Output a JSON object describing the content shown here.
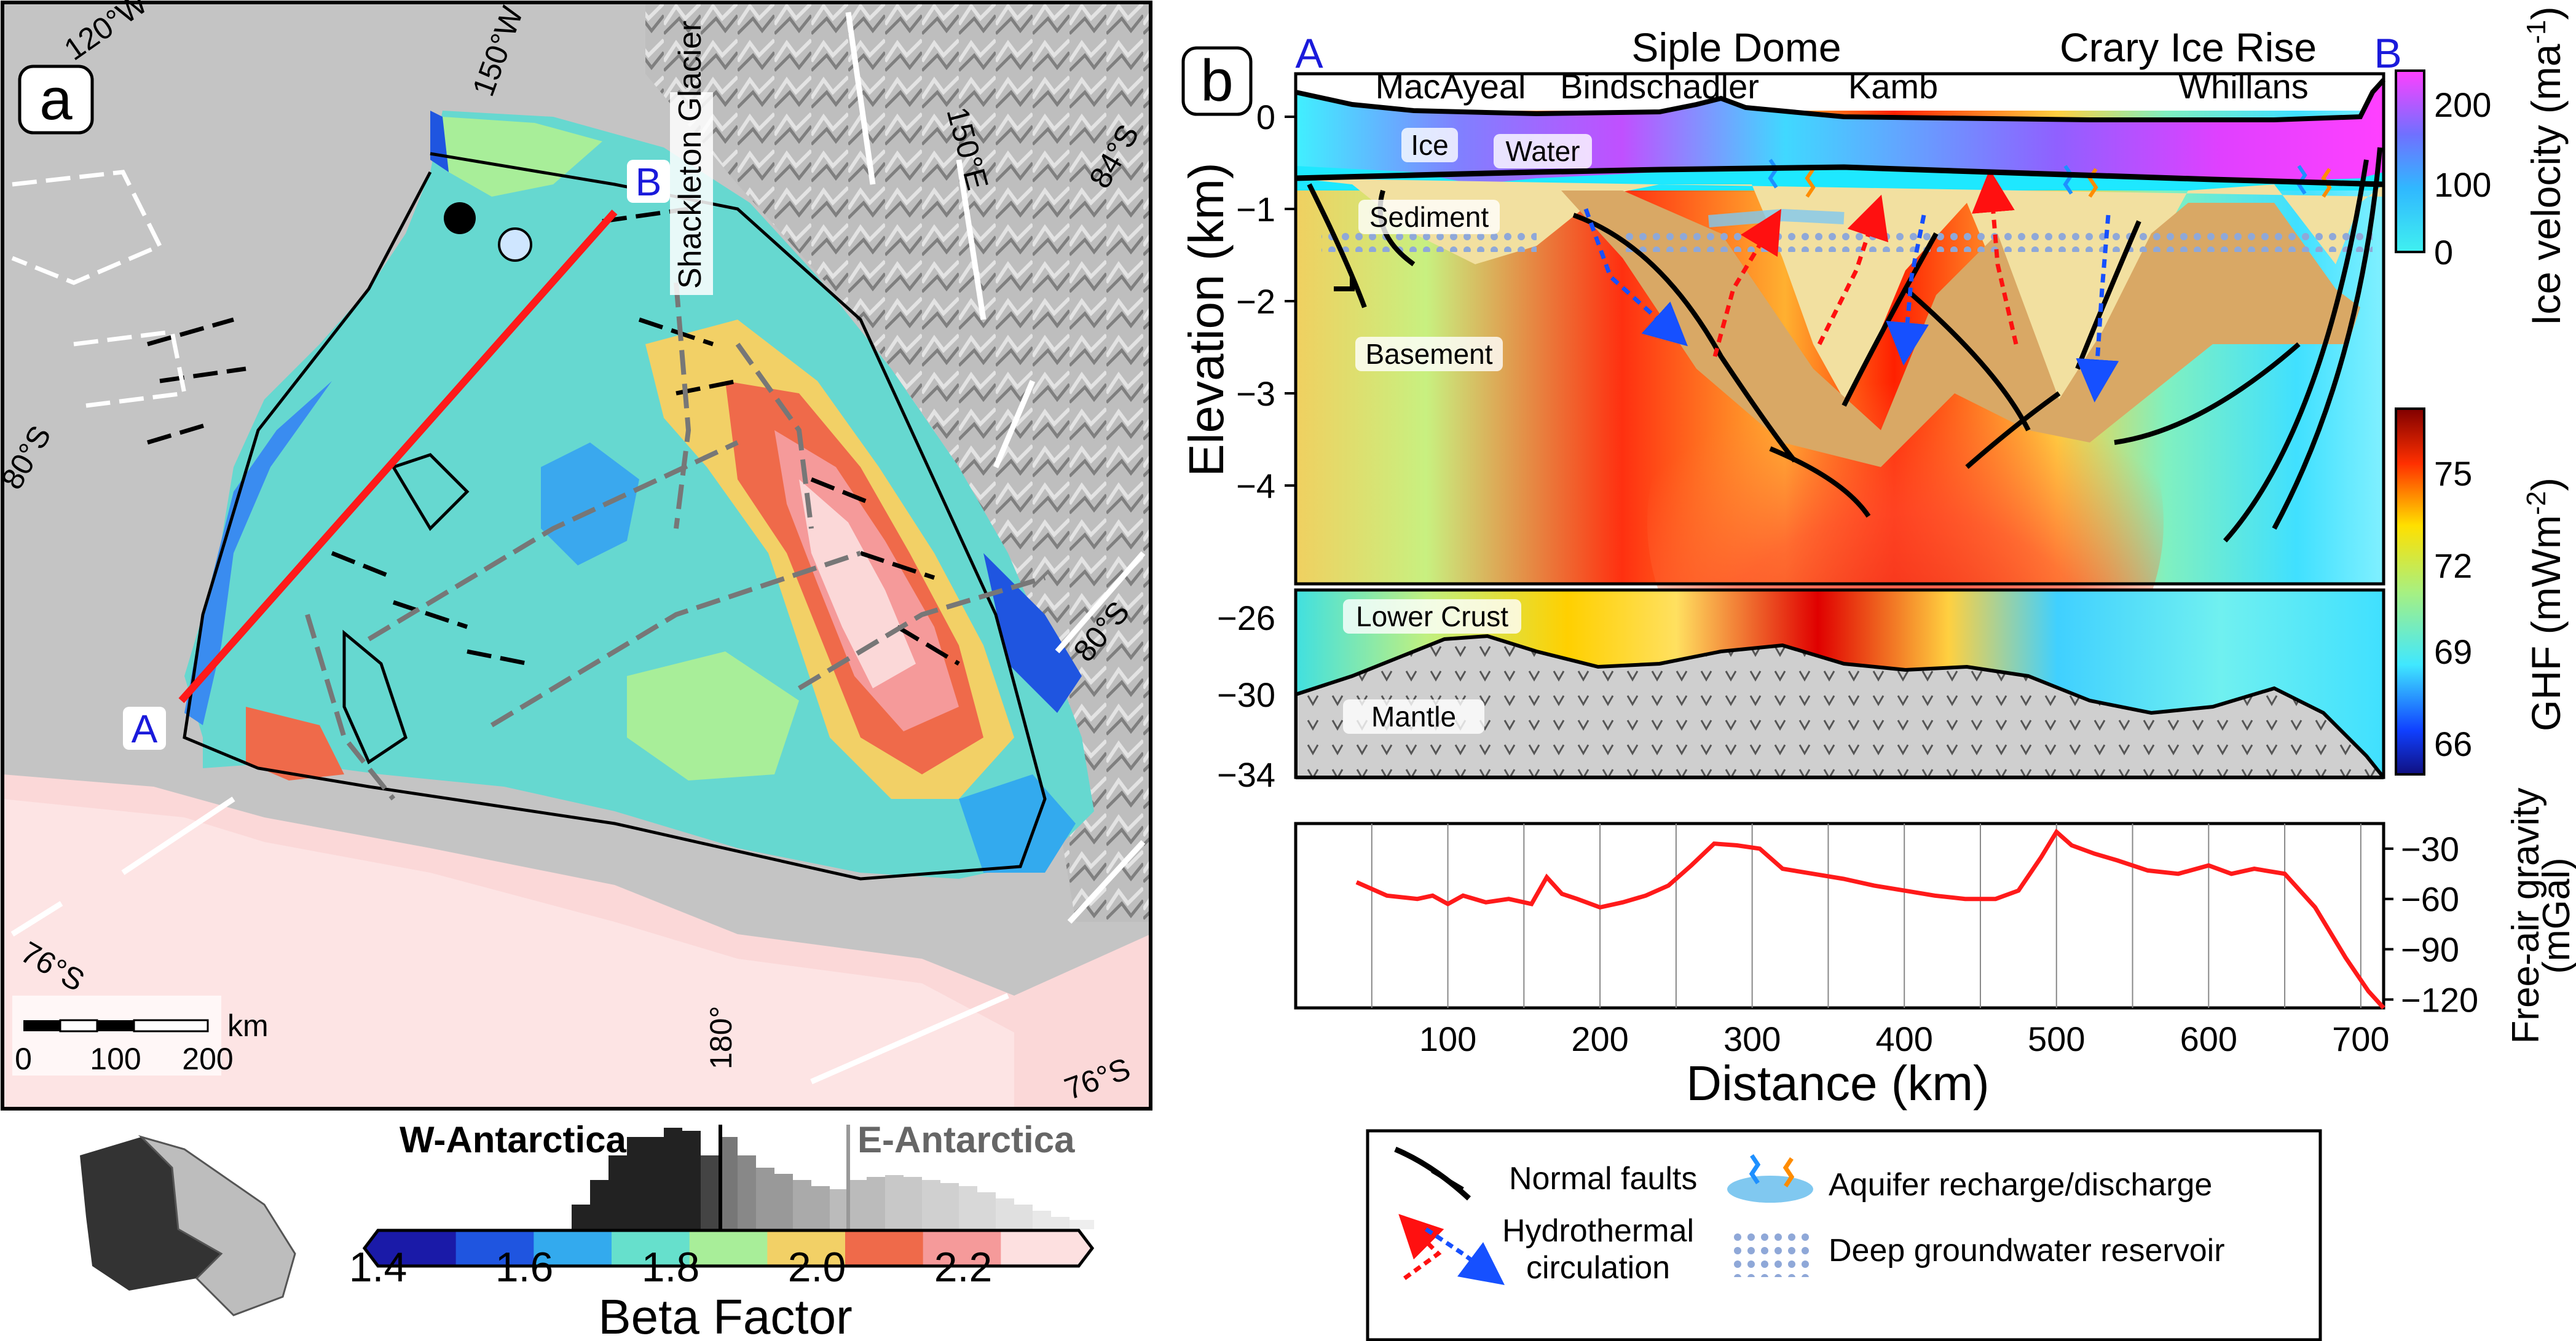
{
  "panel_a": {
    "label": "a",
    "graticule_labels": [
      "120°W",
      "150°W",
      "180°",
      "150°E",
      "84°S",
      "80°S",
      "80°S",
      "76°S",
      "76°S"
    ],
    "glacier_label": "Shackleton Glacier",
    "profile_start": "A",
    "profile_end": "B",
    "scale_bar": {
      "unit": "km",
      "ticks": [
        "0",
        "100",
        "200"
      ]
    }
  },
  "colorbar_beta": {
    "title": "Beta Factor",
    "ticks": [
      "1.4",
      "1.6",
      "1.8",
      "2.0",
      "2.2"
    ],
    "colors": [
      "#1a1aa8",
      "#1f55e0",
      "#33aaee",
      "#66e0cc",
      "#a8ee99",
      "#f2d066",
      "#ef6a4a",
      "#f59a9a",
      "#fde0e0"
    ],
    "histogram_labels": {
      "west": "W-Antarctica",
      "east": "E-Antarctica"
    }
  },
  "panel_b": {
    "label": "b",
    "profile_start": "A",
    "profile_end": "B",
    "top_labels": [
      "Siple Dome",
      "Crary Ice Rise"
    ],
    "stream_labels": [
      "MacAyeal",
      "Bindschadler",
      "Kamb",
      "Whillans"
    ],
    "layer_labels": [
      "Ice",
      "Water",
      "Sediment",
      "Basement",
      "Lower Crust",
      "Mantle"
    ],
    "elevation_axis": {
      "label": "Elevation (km)",
      "ticks": [
        "0",
        "−1",
        "−2",
        "−3",
        "−4"
      ]
    },
    "crust_axis_ticks": [
      "−26",
      "−30",
      "−34"
    ],
    "distance_axis": {
      "label": "Distance (km)",
      "ticks": [
        "100",
        "200",
        "300",
        "400",
        "500",
        "600",
        "700"
      ]
    },
    "gravity_axis": {
      "label_line1": "Free-air gravity",
      "label_line2": "(mGal)",
      "ticks": [
        "−30",
        "−60",
        "−90",
        "−120"
      ]
    },
    "velocity_colorbar": {
      "label": "Ice velocity (ma",
      "label_sup": "-1",
      "label_end": ")",
      "ticks": [
        "200",
        "100",
        "0"
      ]
    },
    "ghf_colorbar": {
      "label": "GHF (mWm",
      "label_sup": "-2",
      "label_end": ")",
      "ticks": [
        "75",
        "72",
        "69",
        "66"
      ]
    }
  },
  "legend": {
    "normal_faults": "Normal faults",
    "hydrothermal_line1": "Hydrothermal",
    "hydrothermal_line2": "circulation",
    "aquifer": "Aquifer recharge/discharge",
    "reservoir": "Deep groundwater reservoir"
  },
  "chart_data": {
    "type": "line",
    "title": "",
    "xlabel": "Distance (km)",
    "ylabel": "Free-air gravity (mGal)",
    "xlim": [
      0,
      715
    ],
    "ylim": [
      -125,
      -15
    ],
    "series": [
      {
        "x": [
          40,
          60,
          80,
          90,
          100,
          110,
          125,
          140,
          155,
          165,
          175,
          185,
          200,
          215,
          230,
          245,
          260,
          275,
          290,
          305,
          320,
          340,
          360,
          380,
          400,
          420,
          440,
          460,
          475,
          490,
          500,
          510,
          525,
          540,
          560,
          580,
          600,
          615,
          630,
          650,
          670,
          690,
          705,
          715
        ],
        "y": [
          -50,
          -58,
          -60,
          -58,
          -63,
          -58,
          -62,
          -60,
          -63,
          -47,
          -57,
          -60,
          -65,
          -62,
          -58,
          -52,
          -40,
          -27,
          -28,
          -30,
          -42,
          -45,
          -48,
          -52,
          -55,
          -58,
          -60,
          -60,
          -55,
          -35,
          -20,
          -28,
          -33,
          -37,
          -43,
          -45,
          -40,
          -45,
          -42,
          -45,
          -65,
          -95,
          -115,
          -125
        ]
      }
    ]
  }
}
